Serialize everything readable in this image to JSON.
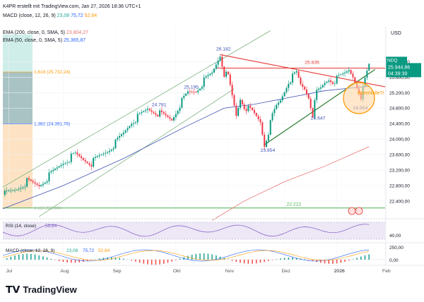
{
  "header": {
    "created": "K4PR erstellt mit TradingView.com, Jan 27, 2026 18:36 UTC+1",
    "macd_title": "MACD (close, 12, 26, 9)",
    "macd_vals": [
      "23,08",
      "75,72",
      "52,64"
    ],
    "ema200_title": "EMA (200, close, 0, SMA, 5)",
    "ema200_val": "23.804,27",
    "ema50_title": "EMA (50, close, 0, SMA, 5)",
    "ema50_val": "25.365,87"
  },
  "footer": {
    "brand": "TradingView"
  },
  "chart_data": {
    "type": "candlestick",
    "currency": "USD",
    "symbol": "NDQ",
    "price_label": "25.944,86",
    "countdown": "04:39:39",
    "y_ticks": [
      "26.000,00",
      "25.600,00",
      "25.200,00",
      "24.800,00",
      "24.400,00",
      "24.000,00",
      "23.600,00",
      "23.200,00",
      "22.800,00",
      "22.400,00"
    ],
    "y_tick_values": [
      26000,
      25600,
      25200,
      24800,
      24400,
      24000,
      23600,
      23200,
      22800,
      22400
    ],
    "ylim": [
      21980,
      26900
    ],
    "x_ticks": [
      "Jul",
      "Aug",
      "Sep",
      "Okt",
      "Nov",
      "Dez",
      "2026",
      "Feb"
    ],
    "fib_labels": [
      {
        "text": "1,618 (25.732,24)",
        "value": 25732.24
      },
      {
        "text": "1,382 (24.391,76)",
        "value": 24391.76
      },
      {
        "text": "1 (22.222,88)",
        "value": 22222.88
      }
    ],
    "price_annotations": [
      {
        "text": "26.182",
        "value": 26182
      },
      {
        "text": "25.835",
        "value": 25835
      },
      {
        "text": "25.195",
        "value": 25195
      },
      {
        "text": "24.781",
        "value": 24781
      },
      {
        "text": "24.647",
        "value": 24647
      },
      {
        "text": "23.854",
        "value": 23854
      },
      {
        "text": "24.954",
        "value": 24954
      },
      {
        "text": "22.222",
        "value": 22222
      }
    ],
    "annotation_text": "Bärenfalle?!",
    "close_path": [
      [
        0,
        22560
      ],
      [
        6,
        22680
      ],
      [
        12,
        22900
      ],
      [
        18,
        22800
      ],
      [
        24,
        23100
      ],
      [
        30,
        23400
      ],
      [
        36,
        23600
      ],
      [
        40,
        23480
      ],
      [
        44,
        23380
      ],
      [
        48,
        23550
      ],
      [
        52,
        23700
      ],
      [
        56,
        23900
      ],
      [
        60,
        24150
      ],
      [
        64,
        24450
      ],
      [
        68,
        24600
      ],
      [
        72,
        24780
      ],
      [
        76,
        24700
      ],
      [
        80,
        24600
      ],
      [
        84,
        24500
      ],
      [
        88,
        24900
      ],
      [
        92,
        25195
      ],
      [
        96,
        25250
      ],
      [
        100,
        25500
      ],
      [
        104,
        25700
      ],
      [
        108,
        26182
      ],
      [
        110,
        25700
      ],
      [
        112,
        25600
      ],
      [
        114,
        25100
      ],
      [
        116,
        24600
      ],
      [
        118,
        25050
      ],
      [
        120,
        24850
      ],
      [
        124,
        24700
      ],
      [
        128,
        24450
      ],
      [
        130,
        23854
      ],
      [
        132,
        24200
      ],
      [
        134,
        24600
      ],
      [
        136,
        24850
      ],
      [
        138,
        25000
      ],
      [
        140,
        25250
      ],
      [
        142,
        25500
      ],
      [
        144,
        25600
      ],
      [
        146,
        25700
      ],
      [
        148,
        25400
      ],
      [
        150,
        25300
      ],
      [
        152,
        25100
      ],
      [
        154,
        24647
      ],
      [
        156,
        25200
      ],
      [
        158,
        25300
      ],
      [
        160,
        25450
      ],
      [
        162,
        25550
      ],
      [
        164,
        25500
      ],
      [
        166,
        25550
      ],
      [
        168,
        25620
      ],
      [
        170,
        25700
      ],
      [
        172,
        25800
      ],
      [
        174,
        25650
      ],
      [
        176,
        25400
      ],
      [
        177,
        25100
      ],
      [
        178,
        24954
      ],
      [
        179,
        25300
      ],
      [
        180,
        25550
      ],
      [
        181,
        25750
      ],
      [
        182,
        25944.86
      ]
    ],
    "ema50": [
      [
        0,
        22200
      ],
      [
        30,
        22800
      ],
      [
        60,
        23500
      ],
      [
        90,
        24300
      ],
      [
        110,
        24800
      ],
      [
        125,
        24900
      ],
      [
        140,
        25050
      ],
      [
        160,
        25250
      ],
      [
        182,
        25365.87
      ]
    ],
    "ema200": [
      [
        104,
        21900
      ],
      [
        120,
        22400
      ],
      [
        140,
        22900
      ],
      [
        160,
        23300
      ],
      [
        182,
        23804.27
      ]
    ],
    "rsi": {
      "title": "RSI (14, close)",
      "value": "59,64",
      "ticks": [
        "40,00"
      ],
      "levels": [
        70,
        30
      ]
    },
    "macd": {
      "title": "MACD (close, 12, 26, 9)",
      "values": [
        "23,08",
        "75,72",
        "52,64"
      ],
      "ticks": [
        "250,00",
        "0,00"
      ]
    }
  }
}
